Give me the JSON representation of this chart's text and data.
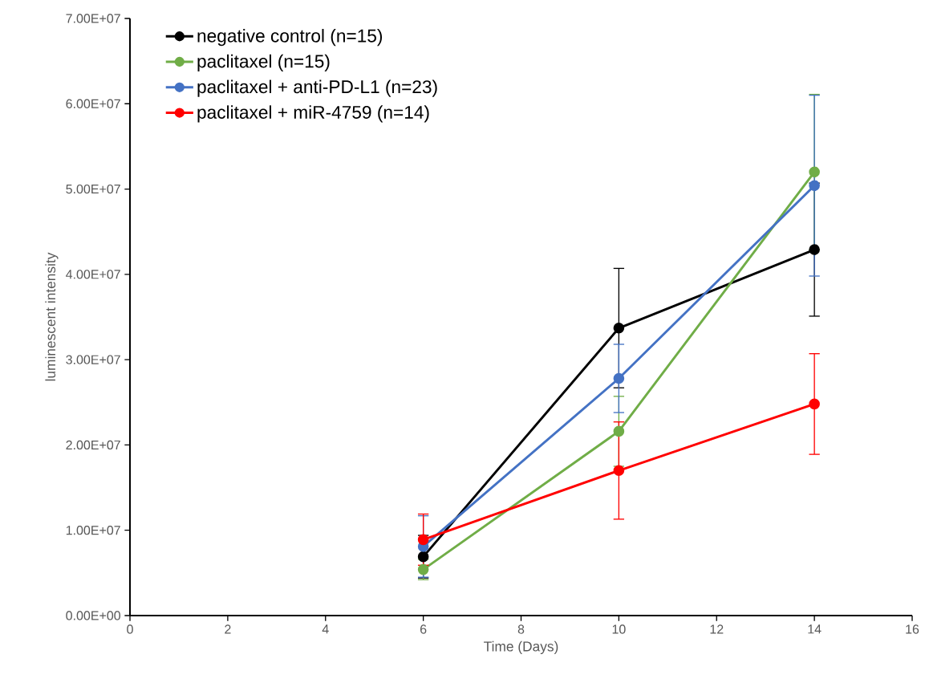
{
  "chart_data": {
    "type": "line",
    "xlabel": "Time (Days)",
    "ylabel": "luminescent intensity",
    "x": [
      6,
      10,
      14
    ],
    "series": [
      {
        "name": "negative control (n=15)",
        "color": "#000000",
        "values": [
          6900000,
          33700000,
          42900000
        ],
        "errors": [
          2500000,
          7000000,
          7800000
        ]
      },
      {
        "name": "paclitaxel (n=15)",
        "color": "#70ad47",
        "values": [
          5400000,
          21600000,
          52000000
        ],
        "errors": [
          1200000,
          4100000,
          9100000
        ]
      },
      {
        "name": "paclitaxel + anti-PD-L1 (n=23)",
        "color": "#4472c4",
        "values": [
          8100000,
          27800000,
          50400000
        ],
        "errors": [
          3600000,
          4000000,
          10600000
        ]
      },
      {
        "name": "paclitaxel + miR-4759 (n=14)",
        "color": "#ff0000",
        "values": [
          8900000,
          17000000,
          24800000
        ],
        "errors": [
          3000000,
          5700000,
          5900000
        ]
      }
    ],
    "xlim": [
      0,
      16
    ],
    "xticks": [
      0,
      2,
      4,
      6,
      8,
      10,
      12,
      14,
      16
    ],
    "ylim": [
      0,
      70000000
    ],
    "yticks": [
      {
        "value": 0,
        "label": "0.00E+00"
      },
      {
        "value": 10000000,
        "label": "1.00E+07"
      },
      {
        "value": 20000000,
        "label": "2.00E+07"
      },
      {
        "value": 30000000,
        "label": "3.00E+07"
      },
      {
        "value": 40000000,
        "label": "4.00E+07"
      },
      {
        "value": 50000000,
        "label": "5.00E+07"
      },
      {
        "value": 60000000,
        "label": "6.00E+07"
      },
      {
        "value": 70000000,
        "label": "7.00E+07"
      }
    ],
    "grid": false,
    "legend": "top left",
    "marker": "circle",
    "line_style": "solid"
  }
}
